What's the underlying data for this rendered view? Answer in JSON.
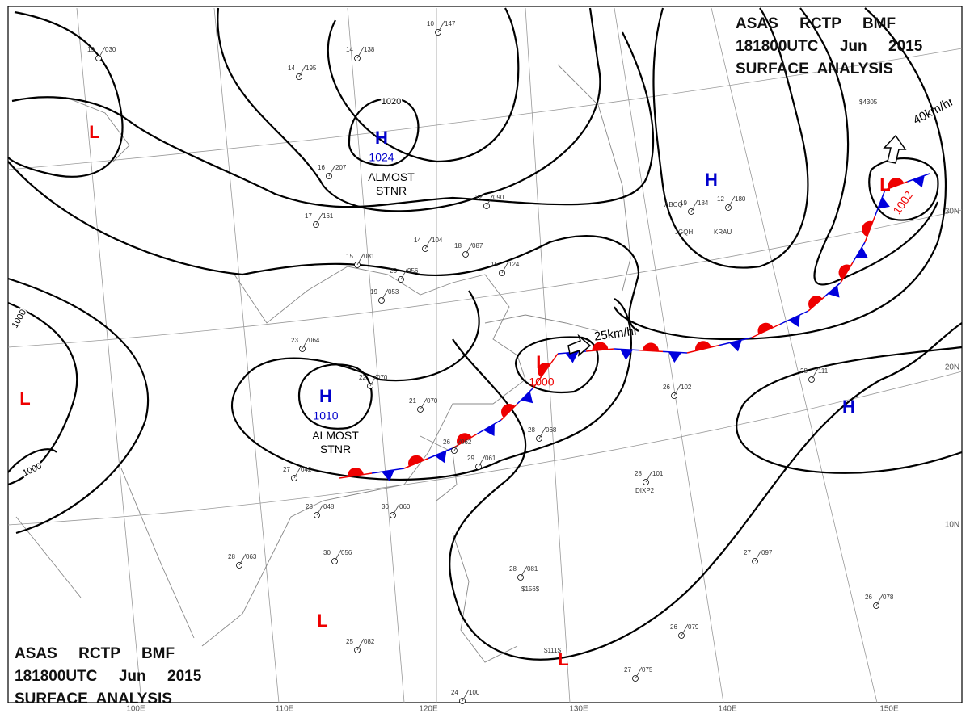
{
  "header": {
    "line1": "ASAS     RCTP     BMF",
    "line2": "181800UTC     Jun     2015",
    "line3": "SURFACE  ANALYSIS"
  },
  "centers": [
    {
      "label": "H",
      "pressure": "1024",
      "note": "ALMOST\nSTNR"
    },
    {
      "label": "H",
      "pressure": "1010",
      "note": "ALMOST\nSTNR"
    },
    {
      "label": "H"
    },
    {
      "label": "H"
    },
    {
      "label": "L"
    },
    {
      "label": "L"
    },
    {
      "label": "L",
      "pressure": "1000"
    },
    {
      "label": "L",
      "pressure": "1002"
    },
    {
      "label": "L"
    },
    {
      "label": "L"
    }
  ],
  "isobar_labels": [
    "1020",
    "1000",
    "1000"
  ],
  "motions": [
    "25km/hr",
    "40km/hr"
  ],
  "grid_labels": [
    "100E",
    "110E",
    "120E",
    "130E",
    "140E",
    "150E",
    "30N",
    "20N",
    "10N"
  ],
  "stations": [
    {
      "t": "10",
      "p": "147"
    },
    {
      "t": "14",
      "p": "138"
    },
    {
      "t": "14",
      "p": "195"
    },
    {
      "t": "19",
      "p": "030"
    },
    {
      "t": "16",
      "p": "207"
    },
    {
      "t": "17",
      "p": "161"
    },
    {
      "t": "14",
      "p": "104"
    },
    {
      "t": "18",
      "p": "087"
    },
    {
      "t": "15",
      "p": "081"
    },
    {
      "t": "25",
      "p": "056"
    },
    {
      "t": "19",
      "p": "053"
    },
    {
      "t": "23",
      "p": "064"
    },
    {
      "t": "22",
      "p": "070"
    },
    {
      "t": "21",
      "p": "070"
    },
    {
      "t": "27",
      "p": "042"
    },
    {
      "t": "28",
      "p": "048"
    },
    {
      "t": "30",
      "p": "060"
    },
    {
      "t": "26",
      "p": "062"
    },
    {
      "t": "29",
      "p": "061"
    },
    {
      "t": "28",
      "p": "068"
    },
    {
      "t": "28",
      "p": "101"
    },
    {
      "t": "26",
      "p": "102"
    },
    {
      "t": "28",
      "p": "111"
    },
    {
      "t": "27",
      "p": "097"
    },
    {
      "t": "26",
      "p": "078"
    },
    {
      "t": "28",
      "p": "081"
    },
    {
      "t": "26",
      "p": "079"
    },
    {
      "t": "27",
      "p": "075"
    },
    {
      "t": "28",
      "p": "063"
    },
    {
      "t": "30",
      "p": "056"
    },
    {
      "t": "25",
      "p": "082"
    },
    {
      "t": "24",
      "p": "100"
    },
    {
      "t": "22",
      "p": "090"
    },
    {
      "t": "15",
      "p": "124"
    },
    {
      "t": "12",
      "p": "180"
    },
    {
      "t": "19",
      "p": "184"
    }
  ],
  "station_ids": [
    "ABCQ",
    "JGQH",
    "KRAU",
    "DIXP2",
    "$156$",
    "$111$",
    "$4305"
  ]
}
